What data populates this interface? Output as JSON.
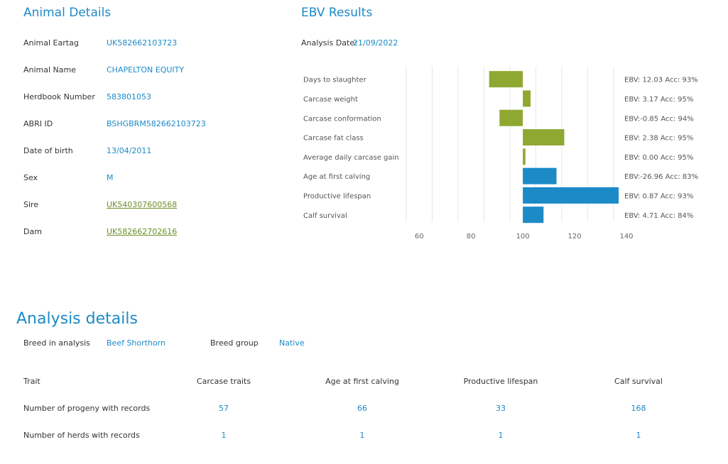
{
  "animal": {
    "title": "Animal Details",
    "rows": [
      {
        "label": "Animal Eartag",
        "value": "UK582662103723",
        "link": false
      },
      {
        "label": "Animal Name",
        "value": "CHAPELTON EQUITY",
        "link": false
      },
      {
        "label": "Herdbook Number",
        "value": "583801053",
        "link": false
      },
      {
        "label": "ABRI ID",
        "value": "BSHGBRM582662103723",
        "link": false
      },
      {
        "label": "Date of birth",
        "value": "13/04/2011",
        "link": false
      },
      {
        "label": "Sex",
        "value": "M",
        "link": false
      },
      {
        "label": "Sire",
        "value": "UK540307600568",
        "link": true
      },
      {
        "label": "Dam",
        "value": "UK582662702616",
        "link": true
      }
    ]
  },
  "ebv": {
    "title": "EBV Results",
    "analysis_date_label": "Analysis Date:",
    "analysis_date": "21/09/2022"
  },
  "chart_data": {
    "type": "bar",
    "orientation": "horizontal",
    "xlim": [
      55,
      140
    ],
    "baseline": 100,
    "xticks": [
      60,
      80,
      100,
      120,
      140
    ],
    "grid": true,
    "colors": {
      "carcase": "#8fa832",
      "maternal": "#1c8ac7"
    },
    "traits": [
      {
        "name": "Days to slaughter",
        "value": 87,
        "group": "carcase",
        "ebv_label": "EBV: 12.03  Acc: 93%"
      },
      {
        "name": "Carcase weight",
        "value": 103,
        "group": "carcase",
        "ebv_label": "EBV: 3.17  Acc: 95%"
      },
      {
        "name": "Carcase conformation",
        "value": 91,
        "group": "carcase",
        "ebv_label": "EBV:-0.85  Acc: 94%"
      },
      {
        "name": "Carcase fat class",
        "value": 116,
        "group": "carcase",
        "ebv_label": "EBV: 2.38  Acc: 95%"
      },
      {
        "name": "Average daily carcase gain",
        "value": 101,
        "group": "carcase",
        "ebv_label": "EBV: 0.00  Acc: 95%"
      },
      {
        "name": "Age at first calving",
        "value": 113,
        "group": "maternal",
        "ebv_label": "EBV:-26.96  Acc: 83%"
      },
      {
        "name": "Productive lifespan",
        "value": 137,
        "group": "maternal",
        "ebv_label": "EBV: 0.87  Acc: 93%"
      },
      {
        "name": "Calf survival",
        "value": 108,
        "group": "maternal",
        "ebv_label": "EBV: 4.71  Acc: 84%"
      }
    ]
  },
  "analysis": {
    "title": "Analysis details",
    "breed_label": "Breed in analysis",
    "breed_value": "Beef Shorthorn",
    "group_label": "Breed group",
    "group_value": "Native",
    "table": {
      "header": [
        "Trait",
        "Carcase traits",
        "Age at first calving",
        "Productive lifespan",
        "Calf survival"
      ],
      "rows": [
        [
          "Number of progeny with records",
          "57",
          "66",
          "33",
          "168"
        ],
        [
          "Number of herds with records",
          "1",
          "1",
          "1",
          "1"
        ]
      ]
    }
  }
}
